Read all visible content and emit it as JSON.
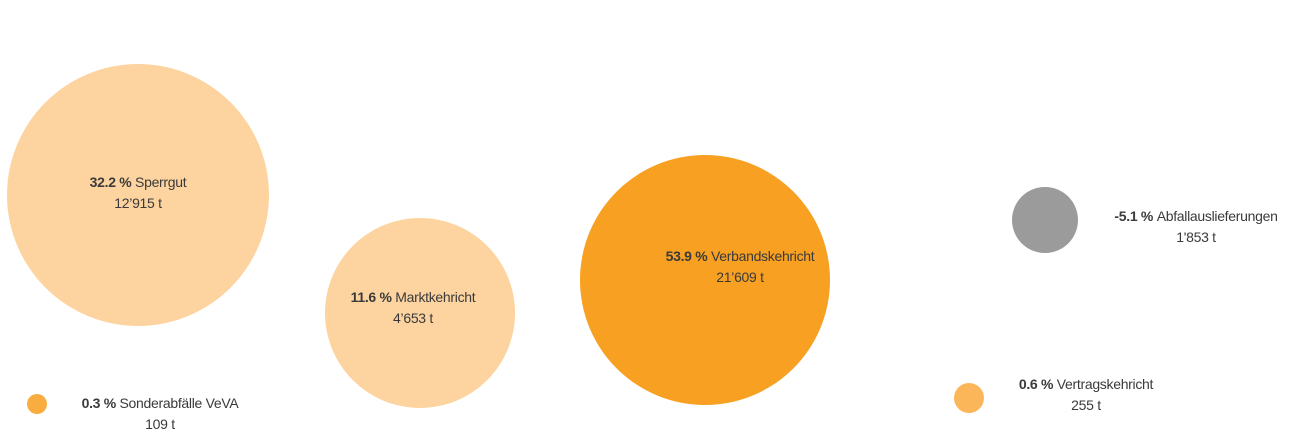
{
  "chart_data": {
    "type": "bubble",
    "categories": [
      "Sperrgut",
      "Marktkehricht",
      "Verbandskehricht",
      "Abfallauslieferungen",
      "Vertragskehricht",
      "Sonderabfälle VeVA"
    ],
    "values": [
      32.2,
      11.6,
      53.9,
      -5.1,
      0.6,
      0.3
    ],
    "value_labels": [
      "32.2 %",
      "11.6 %",
      "53.9 %",
      "-5.1 %",
      "0.6 %",
      "0.3 %"
    ],
    "sizes": [
      12915,
      4653,
      21609,
      1853,
      255,
      109
    ],
    "size_labels": [
      "12’915 t",
      "4’653 t",
      "21’609 t",
      "1'853 t",
      "255 t",
      "109 t"
    ],
    "colors": [
      "#fdd4a0",
      "#fdd4a0",
      "#f7a021",
      "#9b9b9b",
      "#fbb65a",
      "#f9ac3f"
    ]
  }
}
